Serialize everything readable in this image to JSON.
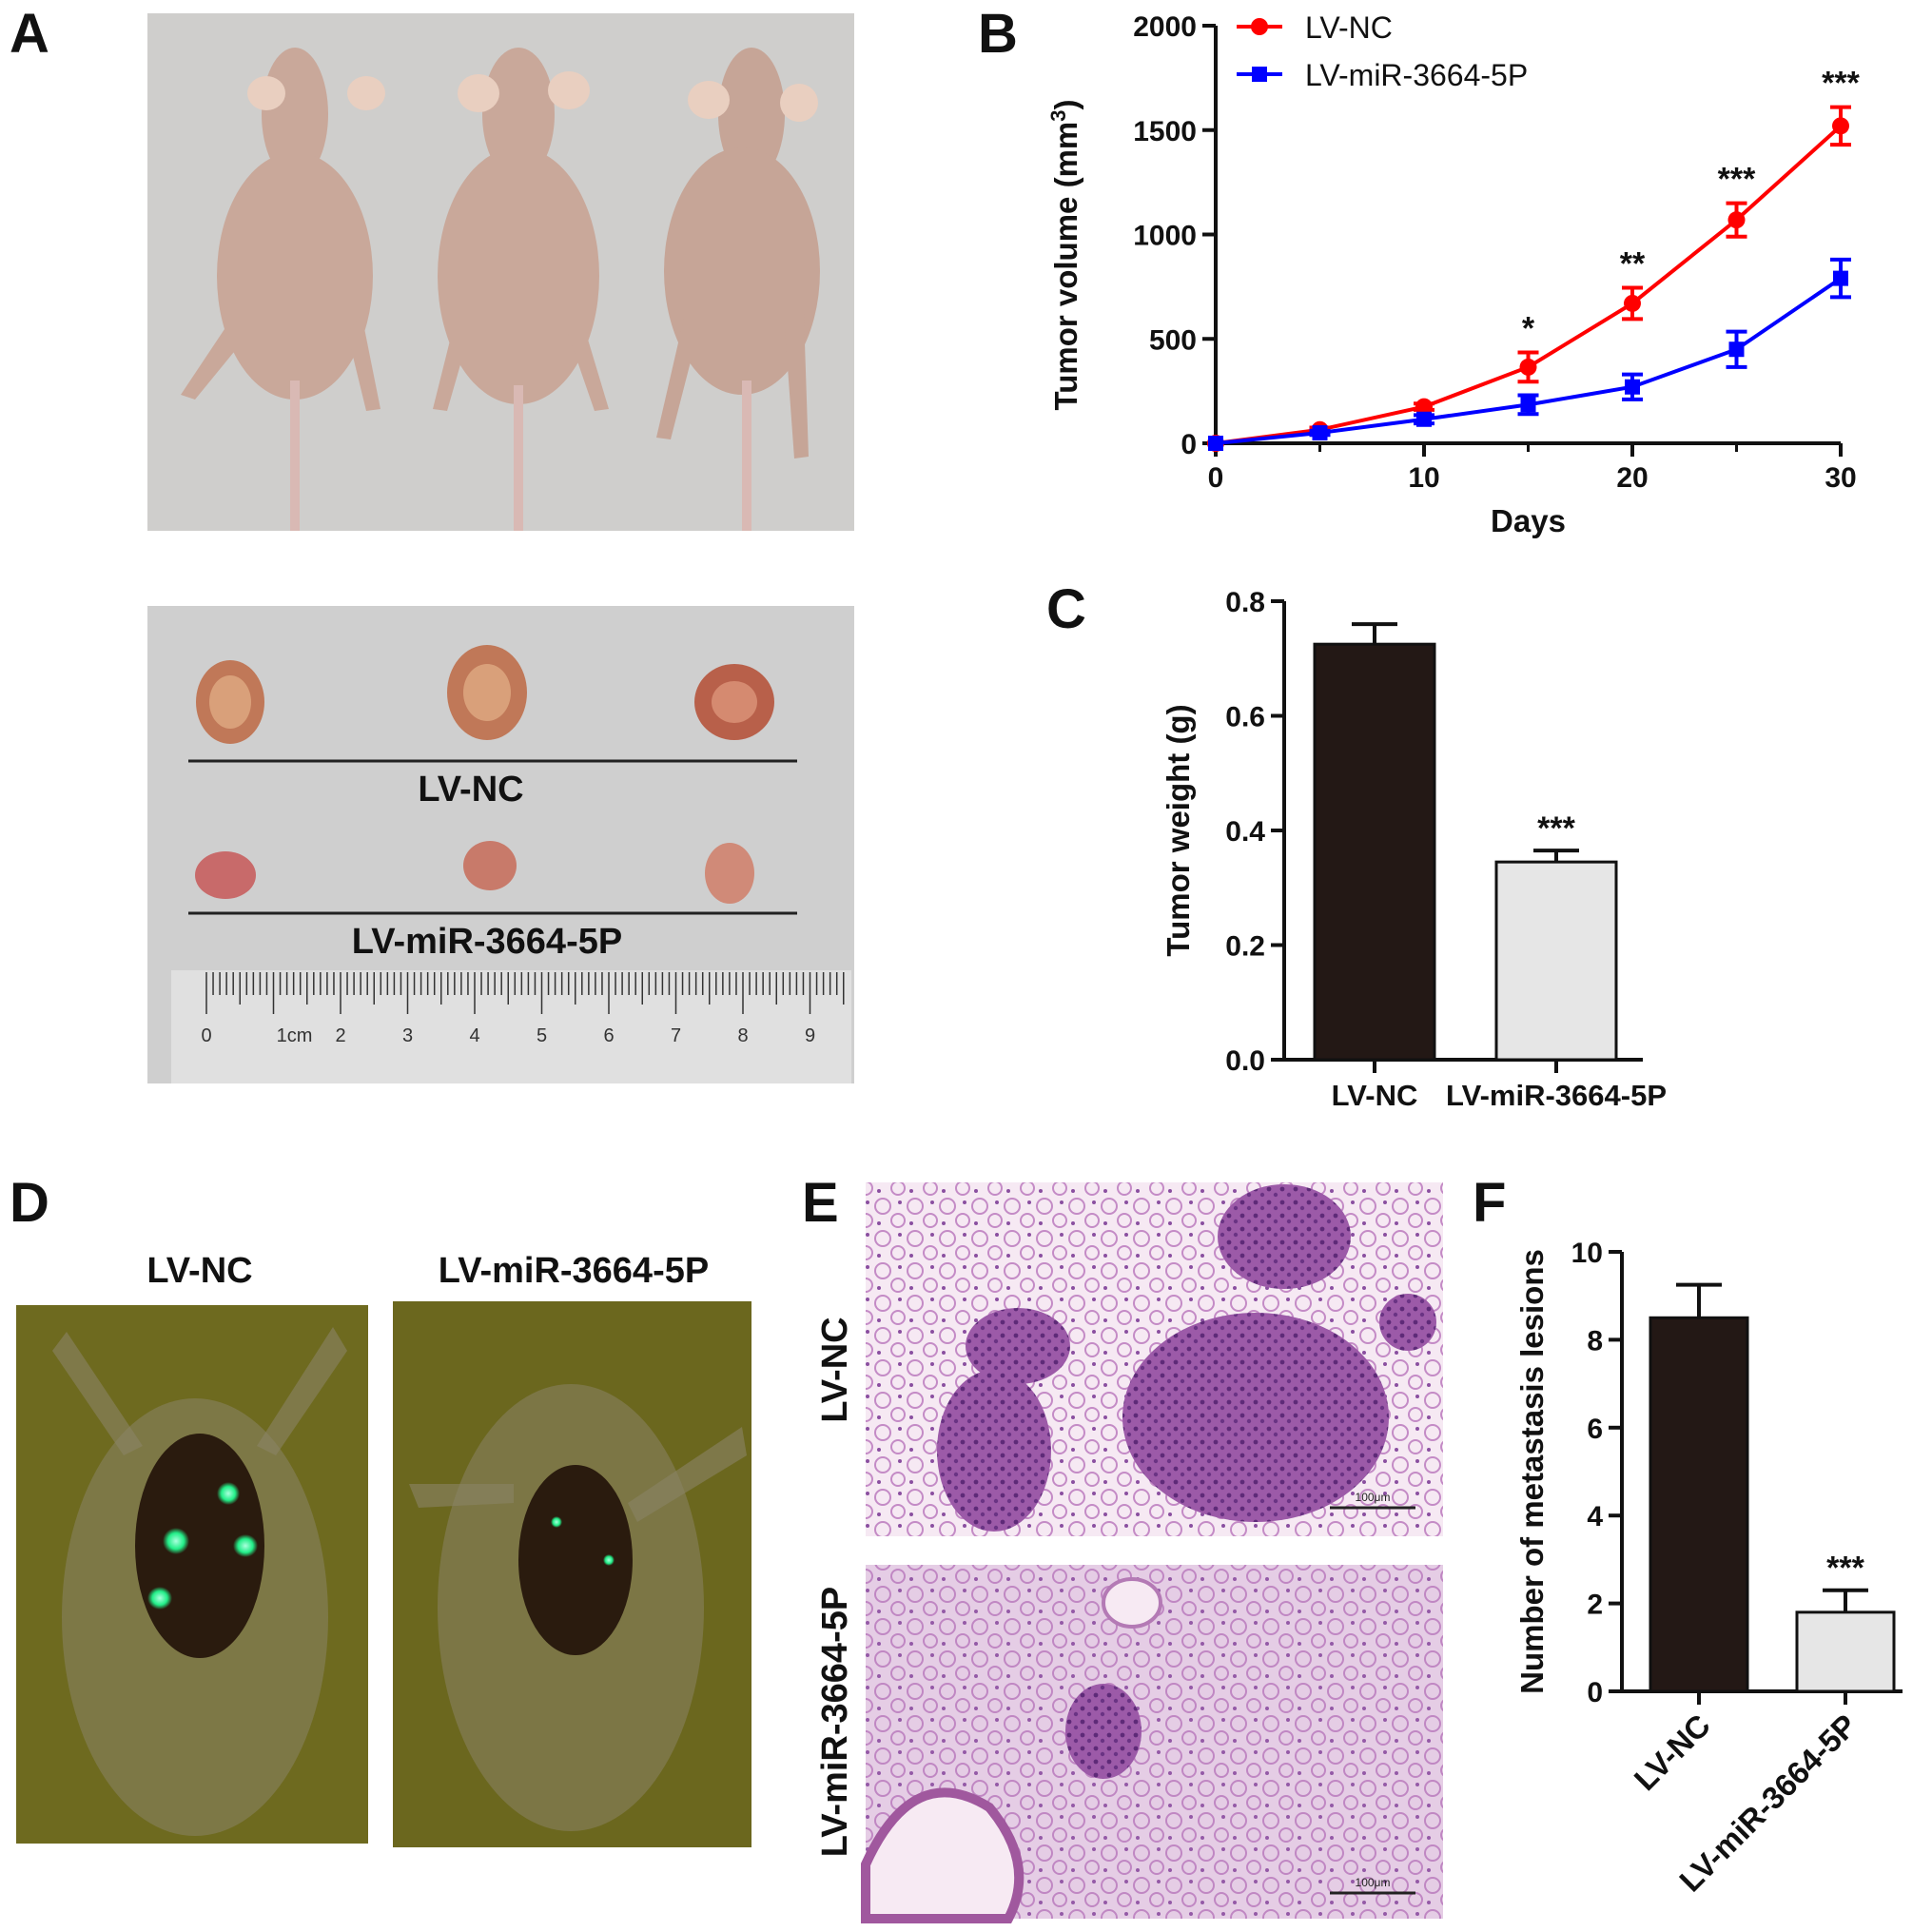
{
  "panels": {
    "A": {
      "label": "A",
      "tumor_label_nc": "LV-NC",
      "tumor_label_mir": "LV-miR-3664-5P",
      "ruler_ticks": [
        "0",
        "1cm",
        "2",
        "3",
        "4",
        "5",
        "6",
        "7",
        "8",
        "9"
      ]
    },
    "B": {
      "label": "B"
    },
    "C": {
      "label": "C"
    },
    "D": {
      "label": "D",
      "left_title": "LV-NC",
      "right_title": "LV-miR-3664-5P"
    },
    "E": {
      "label": "E",
      "top_label": "LV-NC",
      "bottom_label": "LV-miR-3664-5P",
      "scale_text": "100μm"
    },
    "F": {
      "label": "F"
    }
  },
  "colors": {
    "lv_nc_line": "#ff0000",
    "lv_mir_line": "#0000ff",
    "bar_dark": "#231815",
    "bar_light": "#e6e6e6",
    "photo_bg": "#cfcfcf",
    "fluor_bg": "#6e6a1f",
    "fluor_spot": "#33ff99",
    "he_bg": "#f3e3f0",
    "he_tissue": "#b77bbd"
  },
  "chart_data": [
    {
      "id": "B",
      "type": "line",
      "xlabel": "Days",
      "ylabel": "Tumor volume (mm3)",
      "xlim": [
        0,
        30
      ],
      "ylim": [
        0,
        2000
      ],
      "xticks": [
        0,
        10,
        20,
        30
      ],
      "yticks": [
        0,
        500,
        1000,
        1500,
        2000
      ],
      "legend_position": "top-left",
      "series": [
        {
          "name": "LV-NC",
          "marker": "circle",
          "x": [
            0,
            5,
            10,
            15,
            20,
            25,
            30
          ],
          "y": [
            0,
            65,
            175,
            365,
            670,
            1070,
            1520
          ],
          "err": [
            0,
            10,
            15,
            70,
            75,
            80,
            90
          ]
        },
        {
          "name": "LV-miR-3664-5P",
          "marker": "square",
          "x": [
            0,
            5,
            10,
            15,
            20,
            25,
            30
          ],
          "y": [
            0,
            50,
            115,
            185,
            270,
            450,
            790
          ],
          "err": [
            0,
            10,
            20,
            45,
            60,
            85,
            90
          ]
        }
      ],
      "annotations": [
        {
          "x": 15,
          "text": "*"
        },
        {
          "x": 20,
          "text": "**"
        },
        {
          "x": 25,
          "text": "***"
        },
        {
          "x": 30,
          "text": "***"
        }
      ]
    },
    {
      "id": "C",
      "type": "bar",
      "categories": [
        "LV-NC",
        "LV-miR-3664-5P"
      ],
      "values": [
        0.725,
        0.345
      ],
      "errors": [
        0.035,
        0.02
      ],
      "ylabel": "Tumor weight (g)",
      "ylim": [
        0,
        0.8
      ],
      "yticks": [
        "0.0",
        "0.2",
        "0.4",
        "0.6",
        "0.8"
      ],
      "significance": [
        "",
        "***"
      ]
    },
    {
      "id": "F",
      "type": "bar",
      "categories": [
        "LV-NC",
        "LV-miR-3664-5P"
      ],
      "values": [
        8.5,
        1.8
      ],
      "errors": [
        0.75,
        0.5
      ],
      "ylabel": "Number of metastasis lesions",
      "ylim": [
        0,
        10
      ],
      "yticks": [
        "0",
        "2",
        "4",
        "6",
        "8",
        "10"
      ],
      "significance": [
        "",
        "***"
      ]
    }
  ]
}
